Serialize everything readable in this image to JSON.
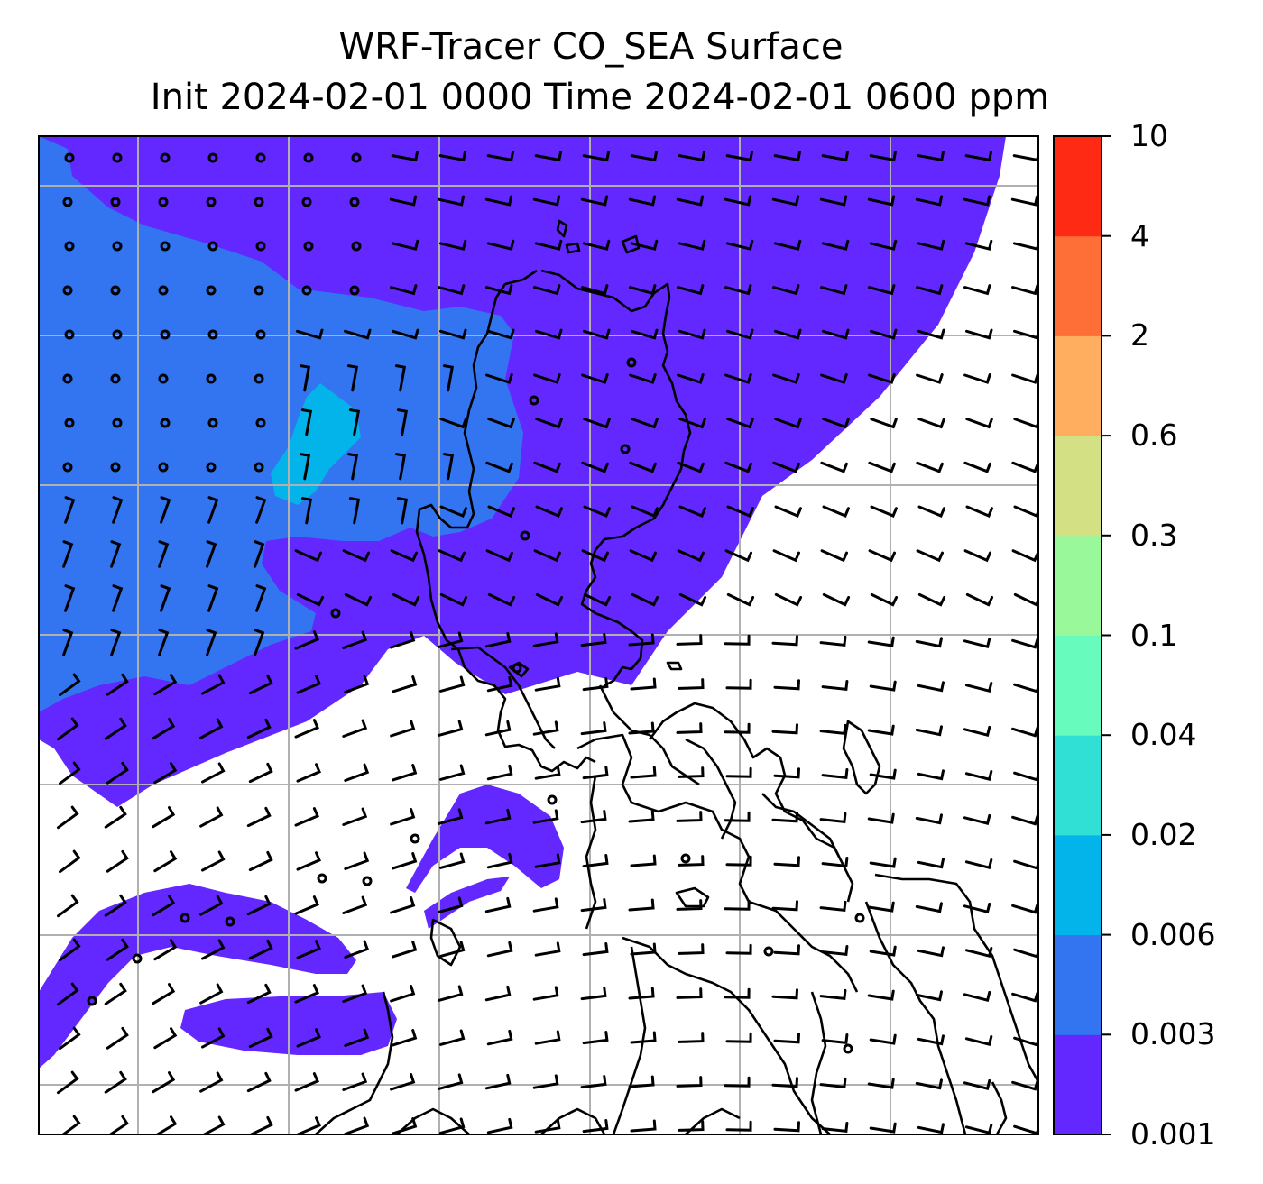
{
  "title_line1": "WRF-Tracer CO_SEA Surface",
  "title_line2": "Init 2024-02-01 0000 Time 2024-02-01 0600 ppm",
  "colorbar": {
    "ticks": [
      "0.001",
      "0.003",
      "0.006",
      "0.02",
      "0.04",
      "0.1",
      "0.3",
      "0.6",
      "2",
      "4",
      "10"
    ],
    "bands": [
      {
        "from": "0.001",
        "to": "0.003",
        "color": "#6228ff"
      },
      {
        "from": "0.003",
        "to": "0.006",
        "color": "#3374f0"
      },
      {
        "from": "0.006",
        "to": "0.02",
        "color": "#03b4ea"
      },
      {
        "from": "0.02",
        "to": "0.04",
        "color": "#31e0d4"
      },
      {
        "from": "0.04",
        "to": "0.1",
        "color": "#67fbbd"
      },
      {
        "from": "0.1",
        "to": "0.3",
        "color": "#99f99a"
      },
      {
        "from": "0.3",
        "to": "0.6",
        "color": "#d3e184"
      },
      {
        "from": "0.6",
        "to": "2",
        "color": "#feae5e"
      },
      {
        "from": "2",
        "to": "4",
        "color": "#fe6f38"
      },
      {
        "from": "4",
        "to": "10",
        "color": "#ff2a14"
      }
    ]
  },
  "map": {
    "field": "CO_SEA tracer concentration",
    "level": "Surface",
    "overlays": [
      "coastline",
      "wind-barbs",
      "gridlines"
    ]
  }
}
